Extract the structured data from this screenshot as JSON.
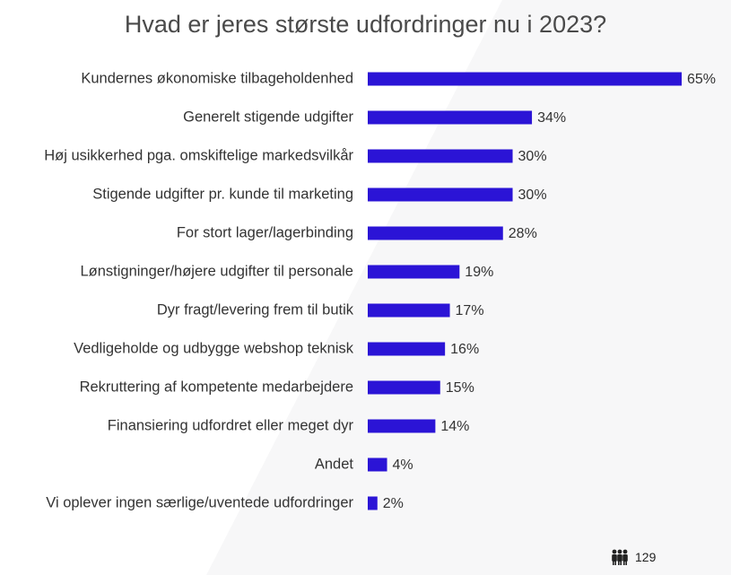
{
  "chart_data": {
    "type": "bar",
    "orientation": "horizontal",
    "title": "Hvad er jeres største udfordringer nu i 2023?",
    "categories": [
      "Kundernes økonomiske tilbageholdenhed",
      "Generelt stigende udgifter",
      "Høj usikkerhed pga. omskiftelige markedsvilkår",
      "Stigende udgifter pr. kunde til marketing",
      "For stort lager/lagerbinding",
      "Lønstigninger/højere udgifter til personale",
      "Dyr fragt/levering frem til butik",
      "Vedligeholde og udbygge webshop teknisk",
      "Rekruttering af kompetente medarbejdere",
      "Finansiering udfordret eller meget dyr",
      "Andet",
      "Vi oplever ingen særlige/uventede udfordringer"
    ],
    "values": [
      65,
      34,
      30,
      30,
      28,
      19,
      17,
      16,
      15,
      14,
      4,
      2
    ],
    "value_labels": [
      "65%",
      "34%",
      "30%",
      "30%",
      "28%",
      "19%",
      "17%",
      "16%",
      "15%",
      "14%",
      "4%",
      "2%"
    ],
    "xlim": [
      0,
      65
    ],
    "grid": false,
    "bar_color": "#2b14d6"
  },
  "footer": {
    "respondents_icon": "people-icon",
    "respondents_count": "129"
  }
}
